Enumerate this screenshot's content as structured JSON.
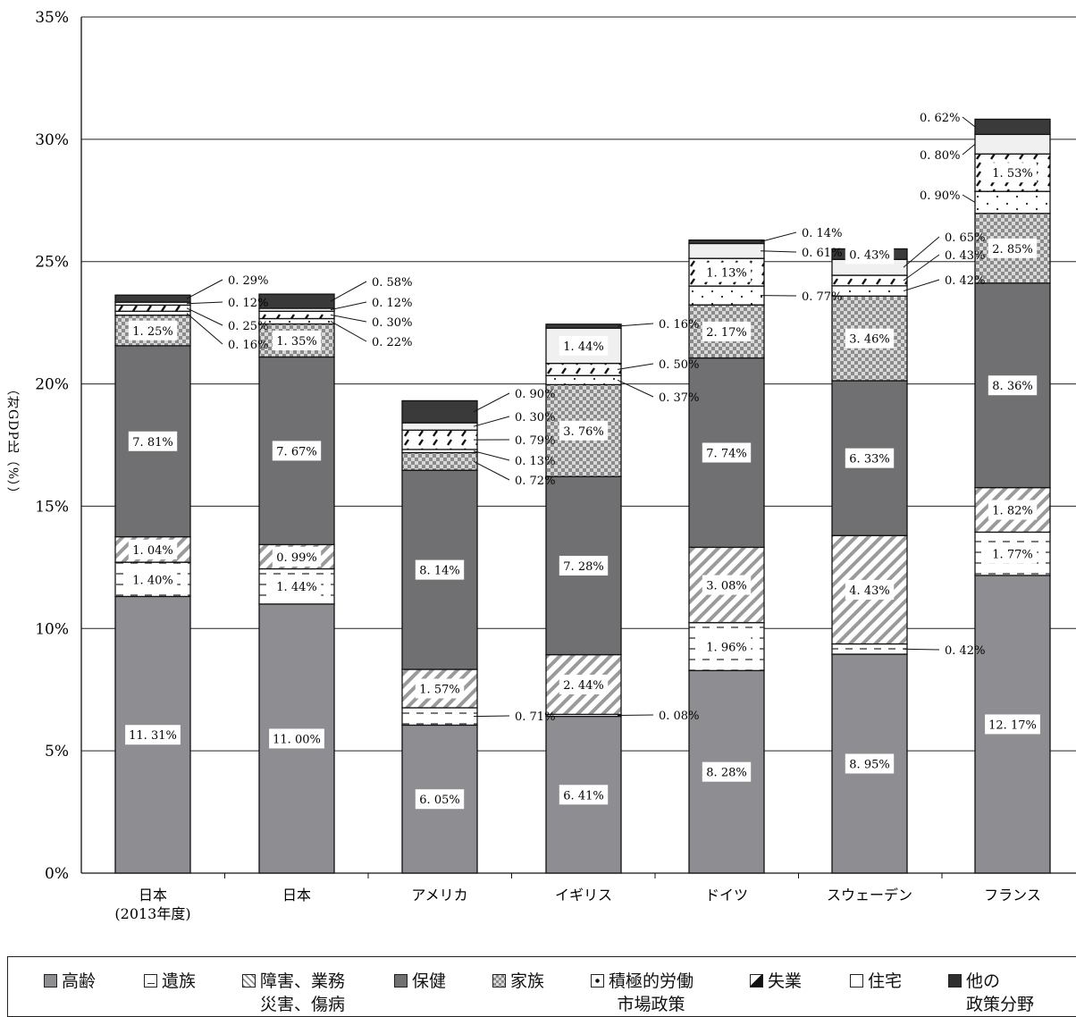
{
  "chart_data": {
    "type": "bar",
    "stacked": true,
    "ylabel": "（対GDP比（%））",
    "ylim": [
      0,
      35
    ],
    "yticks": [
      "0%",
      "5%",
      "10%",
      "15%",
      "20%",
      "25%",
      "30%",
      "35%"
    ],
    "grid": true,
    "legend_position": "bottom",
    "categories": [
      "日本\n(2013年度)",
      "日本",
      "アメリカ",
      "イギリス",
      "ドイツ",
      "スウェーデン",
      "フランス"
    ],
    "series": [
      {
        "name": "高齢",
        "color": "#8e8e92",
        "pattern": "solid-gray",
        "values": [
          11.31,
          11.0,
          6.05,
          6.41,
          8.28,
          8.95,
          12.17
        ],
        "labels": [
          "11. 31%",
          "11. 00%",
          "6. 05%",
          "6. 41%",
          "8. 28%",
          "8. 95%",
          "12. 17%"
        ]
      },
      {
        "name": "遺族",
        "color": "#ffffff",
        "pattern": "dashes",
        "values": [
          1.4,
          1.44,
          0.71,
          0.08,
          1.96,
          0.42,
          1.77
        ],
        "labels": [
          "1. 40%",
          "1. 44%",
          "0. 71%",
          "0. 08%",
          "1. 96%",
          "0. 42%",
          "1. 77%"
        ]
      },
      {
        "name": "障害、業務\n災害、傷病",
        "color": "#ffffff",
        "pattern": "diagonal",
        "values": [
          1.04,
          0.99,
          1.57,
          2.44,
          3.08,
          4.43,
          1.82
        ],
        "labels": [
          "1. 04%",
          "0. 99%",
          "1. 57%",
          "2. 44%",
          "3. 08%",
          "4. 43%",
          "1. 82%"
        ]
      },
      {
        "name": "保健",
        "color": "#707073",
        "pattern": "solid-dark",
        "values": [
          7.81,
          7.67,
          8.14,
          7.28,
          7.74,
          6.33,
          8.36
        ],
        "labels": [
          "7. 81%",
          "7. 67%",
          "8. 14%",
          "7. 28%",
          "7. 74%",
          "6. 33%",
          "8. 36%"
        ]
      },
      {
        "name": "家族",
        "color": "#bdbdbd",
        "pattern": "checker",
        "values": [
          1.25,
          1.35,
          0.72,
          3.76,
          2.17,
          3.46,
          2.85
        ],
        "labels": [
          "1. 25%",
          "1. 35%",
          "0. 72%",
          "3. 76%",
          "2. 17%",
          "3. 46%",
          "2. 85%"
        ]
      },
      {
        "name": "積極的労働\n市場政策",
        "color": "#ffffff",
        "pattern": "dots",
        "values": [
          0.16,
          0.22,
          0.13,
          0.37,
          0.77,
          0.42,
          0.9
        ],
        "labels": [
          "0. 16%",
          "0. 22%",
          "0. 13%",
          "0. 37%",
          "0. 77%",
          "0. 42%",
          "0. 90%"
        ]
      },
      {
        "name": "失業",
        "color": "#ffffff",
        "pattern": "slash-marks",
        "values": [
          0.25,
          0.3,
          0.79,
          0.5,
          1.13,
          0.43,
          1.53
        ],
        "labels": [
          "0. 25%",
          "0. 30%",
          "0. 79%",
          "0. 50%",
          "1. 13%",
          "0. 43%",
          "1. 53%"
        ]
      },
      {
        "name": "住宅",
        "color": "#f0f0f0",
        "pattern": "solid-light",
        "values": [
          0.12,
          0.12,
          0.3,
          1.44,
          0.61,
          0.65,
          0.8
        ],
        "labels": [
          "0. 12%",
          "0. 12%",
          "0. 30%",
          "1. 44%",
          "0. 61%",
          "0. 65%",
          "0. 80%"
        ]
      },
      {
        "name": "他の\n政策分野",
        "color": "#3a3a3a",
        "pattern": "solid-black",
        "values": [
          0.29,
          0.58,
          0.9,
          0.16,
          0.14,
          0.43,
          0.62
        ],
        "labels": [
          "0. 29%",
          "0. 58%",
          "0. 90%",
          "0. 16%",
          "0. 14%",
          "0. 43%",
          "0. 62%"
        ]
      }
    ]
  },
  "legend": [
    {
      "name": "高齢"
    },
    {
      "name": "遺族"
    },
    {
      "name": "障害、業務\n災害、傷病"
    },
    {
      "name": "保健"
    },
    {
      "name": "家族"
    },
    {
      "name": "積極的労働\n市場政策"
    },
    {
      "name": "失業"
    },
    {
      "name": "住宅"
    },
    {
      "name": "他の\n政策分野"
    }
  ]
}
